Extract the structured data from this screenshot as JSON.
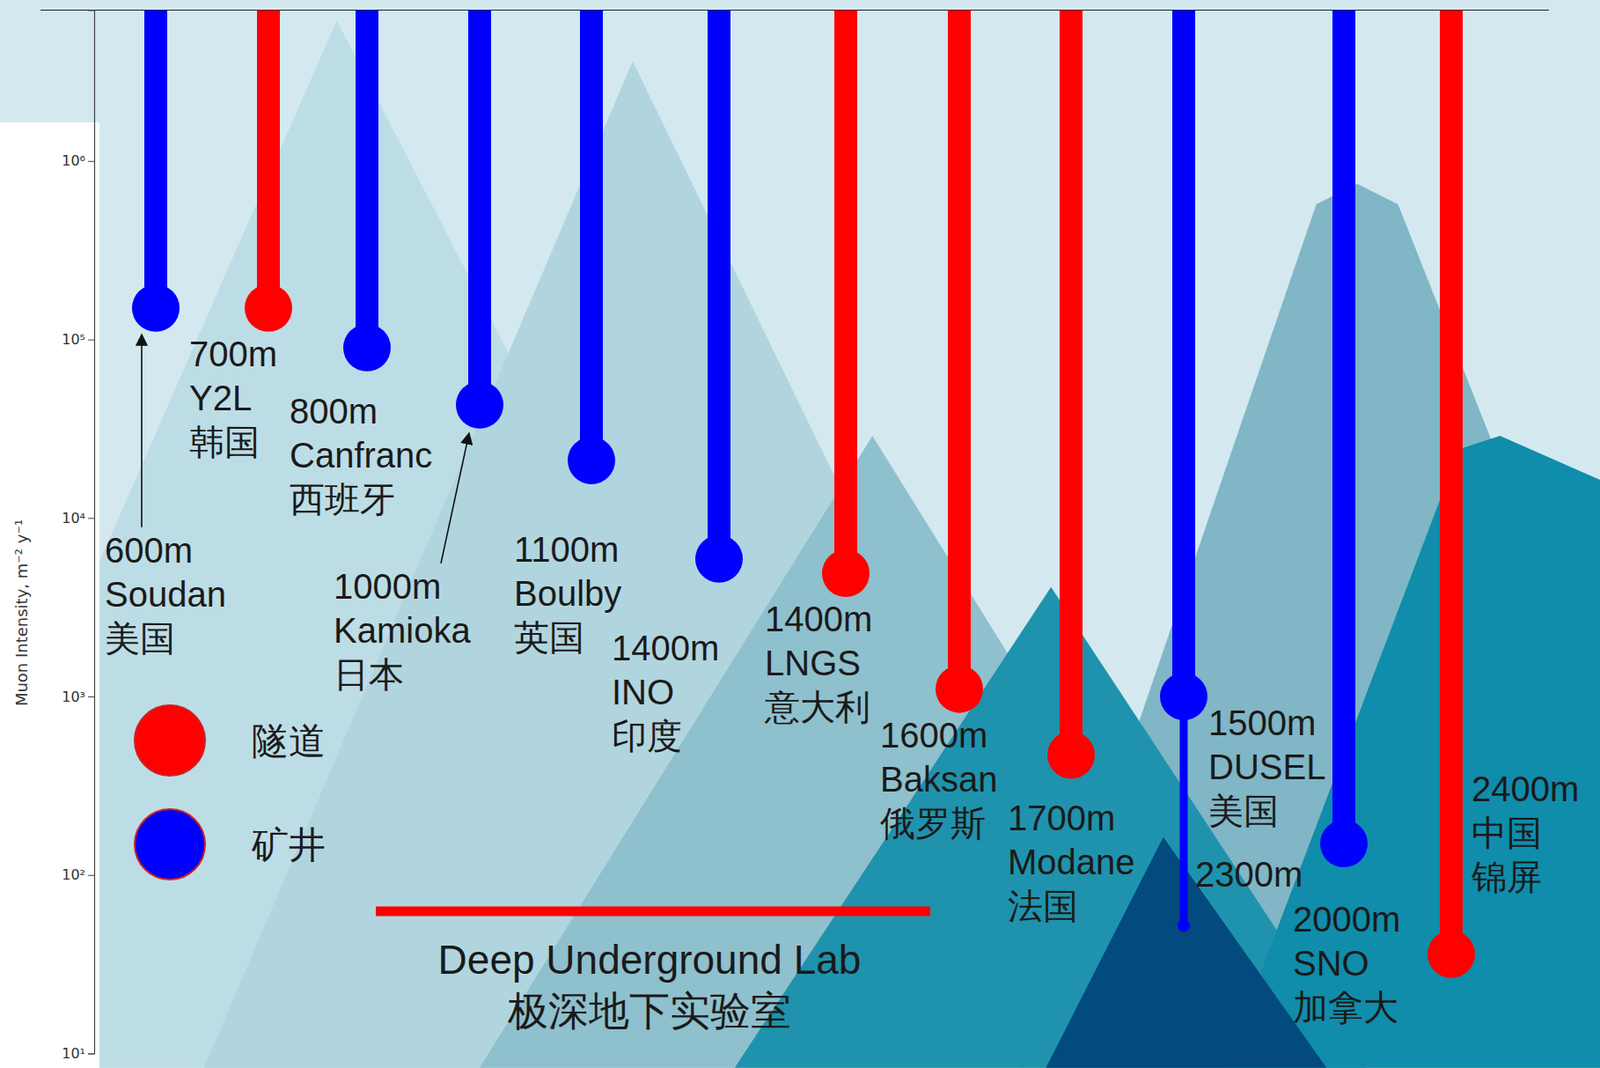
{
  "chart_data": {
    "type": "lollipop",
    "y_label": "Muon Intensity, m⁻² y⁻¹",
    "labels": [
      [
        "600m",
        "Soudan",
        "美国"
      ],
      [
        "700m",
        "Y2L",
        "韩国"
      ],
      [
        "800m",
        "Canfranc",
        "西班牙"
      ],
      [
        "1000m",
        "Kamioka",
        "日本"
      ],
      [
        "1100m",
        "Boulby",
        "英国"
      ],
      [
        "1400m",
        "INO",
        "印度"
      ],
      [
        "1400m",
        "LNGS",
        "意大利"
      ],
      [
        "1600m",
        "Baksan",
        "俄罗斯"
      ],
      [
        "1700m",
        "Modane",
        "法国"
      ],
      [
        "1500m",
        "DUSEL",
        "美国"
      ],
      [
        "2000m",
        "SNO",
        "加拿大"
      ],
      [
        "2400m",
        "中国",
        "锦屏"
      ]
    ],
    "series": [
      {
        "name": "隧道",
        "color": "#ff0000",
        "values": [
          null,
          150000,
          null,
          null,
          null,
          null,
          4900,
          1100,
          470,
          null,
          null,
          36
        ]
      },
      {
        "name": "矿井",
        "color": "#0000ff",
        "values": [
          150000,
          null,
          90000,
          43000,
          21000,
          5900,
          null,
          null,
          null,
          1000,
          150,
          null
        ]
      }
    ],
    "annotations": [
      {
        "text": "2300m",
        "category": 9,
        "value": 52
      },
      {
        "text": "Deep Underground Lab"
      },
      {
        "text": "极深地下实验室"
      }
    ],
    "ylim": [
      10,
      7000000
    ],
    "yticks": [
      {
        "value": 10,
        "label": "10¹"
      },
      {
        "value": 100,
        "label": "10²"
      },
      {
        "value": 1000,
        "label": "10³"
      },
      {
        "value": 10000,
        "label": "10⁴"
      },
      {
        "value": 100000,
        "label": "10⁵"
      },
      {
        "value": 1000000,
        "label": "10⁶"
      }
    ],
    "log": "y",
    "legend": "left"
  }
}
